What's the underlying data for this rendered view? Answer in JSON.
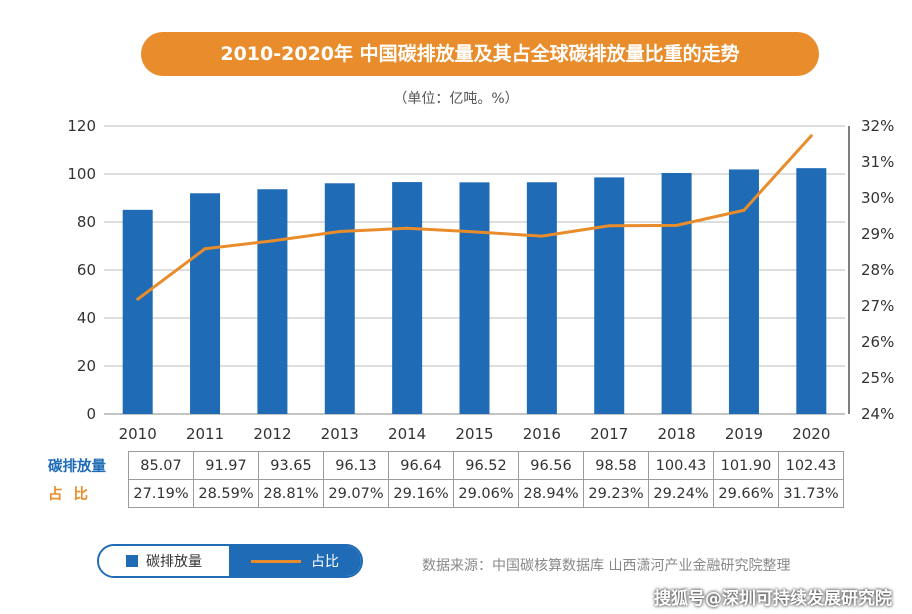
{
  "title": "2010-2020年  中国碳排放量及其占全球碳排放量比重的走势",
  "unit": "（单位：亿吨。%）",
  "colors": {
    "bar": "#1f6bb5",
    "line": "#e98c2b",
    "grid": "#bdbdbd"
  },
  "chart_data": {
    "type": "bar+line",
    "categories": [
      "2010",
      "2011",
      "2012",
      "2013",
      "2014",
      "2015",
      "2016",
      "2017",
      "2018",
      "2019",
      "2020"
    ],
    "series": [
      {
        "name": "碳排放量",
        "type": "bar",
        "axis": "left",
        "values": [
          85.07,
          91.97,
          93.65,
          96.13,
          96.64,
          96.52,
          96.56,
          98.58,
          100.43,
          101.9,
          102.43
        ]
      },
      {
        "name": "占比",
        "type": "line",
        "axis": "right",
        "values": [
          27.19,
          28.59,
          28.81,
          29.07,
          29.16,
          29.06,
          28.94,
          29.23,
          29.24,
          29.66,
          31.73
        ]
      }
    ],
    "left_axis": {
      "ylim": [
        0,
        120
      ],
      "ticks": [
        "0",
        "20",
        "40",
        "60",
        "80",
        "100",
        "120"
      ]
    },
    "right_axis": {
      "ylim": [
        24,
        32
      ],
      "ticks": [
        "24%",
        "25%",
        "26%",
        "27%",
        "28%",
        "29%",
        "30%",
        "31%",
        "32%"
      ]
    },
    "grid": true
  },
  "table": {
    "row1_label": "碳排放量",
    "row1": [
      "85.07",
      "91.97",
      "93.65",
      "96.13",
      "96.64",
      "96.52",
      "96.56",
      "98.58",
      "100.43",
      "101.90",
      "102.43"
    ],
    "row2_label": "占    比",
    "row2": [
      "27.19%",
      "28.59%",
      "28.81%",
      "29.07%",
      "29.16%",
      "29.06%",
      "28.94%",
      "29.23%",
      "29.24%",
      "29.66%",
      "31.73%"
    ]
  },
  "legend": {
    "bar_label": "碳排放量",
    "line_label": "占比"
  },
  "source": "数据来源：中国碳核算数据库 山西潇河产业金融研究院整理",
  "watermark": "搜狐号@深圳可持续发展研究院"
}
